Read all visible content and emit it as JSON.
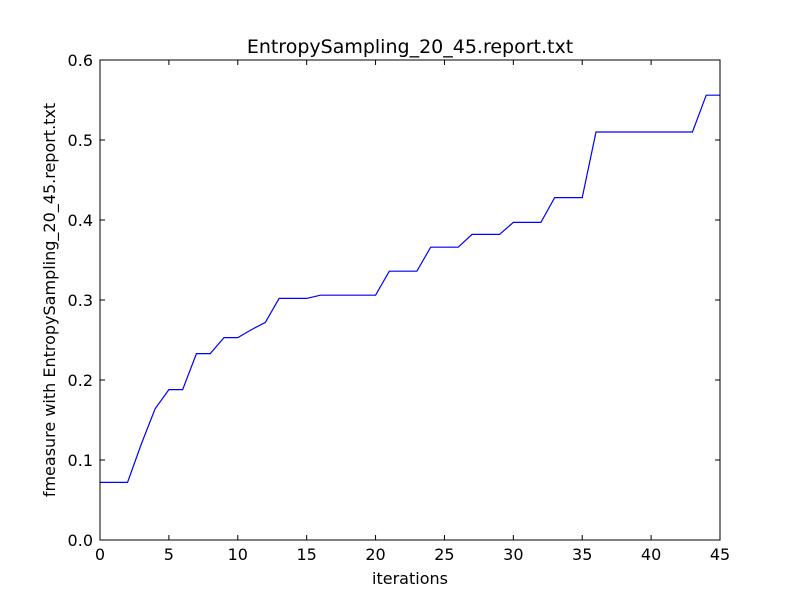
{
  "chart_data": {
    "type": "line",
    "title": "EntropySampling_20_45.report.txt",
    "xlabel": "iterations",
    "ylabel": "fmeasure with EntropySampling_20_45.report.txt",
    "xlim": [
      0,
      45
    ],
    "ylim": [
      0.0,
      0.6
    ],
    "xticks": [
      0,
      5,
      10,
      15,
      20,
      25,
      30,
      35,
      40,
      45
    ],
    "xtick_labels": [
      "0",
      "5",
      "10",
      "15",
      "20",
      "25",
      "30",
      "35",
      "40",
      "45"
    ],
    "yticks": [
      0.0,
      0.1,
      0.2,
      0.3,
      0.4,
      0.5,
      0.6
    ],
    "ytick_labels": [
      "0.0",
      "0.1",
      "0.2",
      "0.3",
      "0.4",
      "0.5",
      "0.6"
    ],
    "grid": false,
    "line_color": "#0000ff",
    "series": [
      {
        "x": [
          0,
          1,
          2,
          3,
          4,
          5,
          6,
          7,
          8,
          9,
          10,
          11,
          12,
          13,
          14,
          15,
          16,
          17,
          18,
          19,
          20,
          21,
          22,
          23,
          24,
          25,
          26,
          27,
          28,
          29,
          30,
          31,
          32,
          33,
          34,
          35,
          36,
          37,
          38,
          39,
          40,
          41,
          42,
          43,
          44,
          45
        ],
        "values": [
          0.072,
          0.072,
          0.072,
          0.12,
          0.164,
          0.188,
          0.188,
          0.233,
          0.233,
          0.253,
          0.253,
          0.263,
          0.272,
          0.302,
          0.302,
          0.302,
          0.306,
          0.306,
          0.306,
          0.306,
          0.306,
          0.336,
          0.336,
          0.336,
          0.366,
          0.366,
          0.366,
          0.382,
          0.382,
          0.382,
          0.397,
          0.397,
          0.397,
          0.428,
          0.428,
          0.428,
          0.51,
          0.51,
          0.51,
          0.51,
          0.51,
          0.51,
          0.51,
          0.51,
          0.556,
          0.556
        ]
      }
    ]
  }
}
